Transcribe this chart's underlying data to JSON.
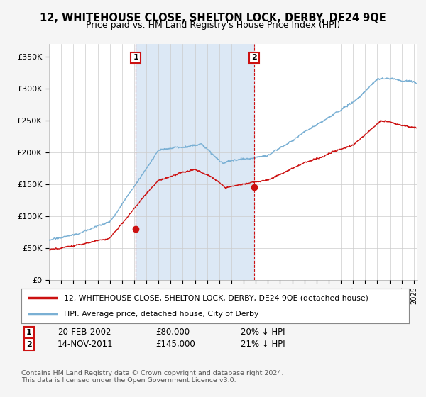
{
  "title": "12, WHITEHOUSE CLOSE, SHELTON LOCK, DERBY, DE24 9QE",
  "subtitle": "Price paid vs. HM Land Registry's House Price Index (HPI)",
  "title_fontsize": 10.5,
  "subtitle_fontsize": 9,
  "ylabel_ticks": [
    "£0",
    "£50K",
    "£100K",
    "£150K",
    "£200K",
    "£250K",
    "£300K",
    "£350K"
  ],
  "ytick_vals": [
    0,
    50000,
    100000,
    150000,
    200000,
    250000,
    300000,
    350000
  ],
  "ylim": [
    0,
    370000
  ],
  "xlim_start": 1995.0,
  "xlim_end": 2025.3,
  "background_color": "#f5f5f5",
  "plot_bg_color": "#ffffff",
  "shade_color": "#dce8f5",
  "grid_color": "#cccccc",
  "hpi_color": "#7ab0d4",
  "price_color": "#cc1111",
  "annotation_box_color": "#cc1111",
  "sale1_x": 2002.13,
  "sale1_y": 80000,
  "sale1_label": "1",
  "sale1_date": "20-FEB-2002",
  "sale1_price": "£80,000",
  "sale1_pct": "20% ↓ HPI",
  "sale2_x": 2011.87,
  "sale2_y": 145000,
  "sale2_label": "2",
  "sale2_date": "14-NOV-2011",
  "sale2_price": "£145,000",
  "sale2_pct": "21% ↓ HPI",
  "legend_line1": "12, WHITEHOUSE CLOSE, SHELTON LOCK, DERBY, DE24 9QE (detached house)",
  "legend_line2": "HPI: Average price, detached house, City of Derby",
  "footer1": "Contains HM Land Registry data © Crown copyright and database right 2024.",
  "footer2": "This data is licensed under the Open Government Licence v3.0."
}
